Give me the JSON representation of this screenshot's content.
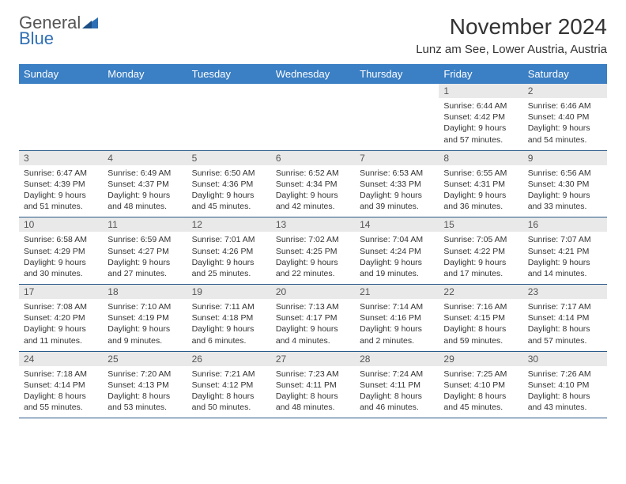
{
  "logo": {
    "word1": "General",
    "word2": "Blue"
  },
  "header": {
    "title": "November 2024",
    "location": "Lunz am See, Lower Austria, Austria"
  },
  "colors": {
    "header_bg": "#3b7fc4",
    "header_text": "#ffffff",
    "daynum_bg": "#e9e9e9",
    "row_border": "#2a5a8a",
    "logo_blue": "#2f6fb5"
  },
  "weekdays": [
    "Sunday",
    "Monday",
    "Tuesday",
    "Wednesday",
    "Thursday",
    "Friday",
    "Saturday"
  ],
  "weeks": [
    [
      {
        "n": "",
        "sr": "",
        "ss": "",
        "dl": "",
        "empty": true
      },
      {
        "n": "",
        "sr": "",
        "ss": "",
        "dl": "",
        "empty": true
      },
      {
        "n": "",
        "sr": "",
        "ss": "",
        "dl": "",
        "empty": true
      },
      {
        "n": "",
        "sr": "",
        "ss": "",
        "dl": "",
        "empty": true
      },
      {
        "n": "",
        "sr": "",
        "ss": "",
        "dl": "",
        "empty": true
      },
      {
        "n": "1",
        "sr": "Sunrise: 6:44 AM",
        "ss": "Sunset: 4:42 PM",
        "dl": "Daylight: 9 hours and 57 minutes."
      },
      {
        "n": "2",
        "sr": "Sunrise: 6:46 AM",
        "ss": "Sunset: 4:40 PM",
        "dl": "Daylight: 9 hours and 54 minutes."
      }
    ],
    [
      {
        "n": "3",
        "sr": "Sunrise: 6:47 AM",
        "ss": "Sunset: 4:39 PM",
        "dl": "Daylight: 9 hours and 51 minutes."
      },
      {
        "n": "4",
        "sr": "Sunrise: 6:49 AM",
        "ss": "Sunset: 4:37 PM",
        "dl": "Daylight: 9 hours and 48 minutes."
      },
      {
        "n": "5",
        "sr": "Sunrise: 6:50 AM",
        "ss": "Sunset: 4:36 PM",
        "dl": "Daylight: 9 hours and 45 minutes."
      },
      {
        "n": "6",
        "sr": "Sunrise: 6:52 AM",
        "ss": "Sunset: 4:34 PM",
        "dl": "Daylight: 9 hours and 42 minutes."
      },
      {
        "n": "7",
        "sr": "Sunrise: 6:53 AM",
        "ss": "Sunset: 4:33 PM",
        "dl": "Daylight: 9 hours and 39 minutes."
      },
      {
        "n": "8",
        "sr": "Sunrise: 6:55 AM",
        "ss": "Sunset: 4:31 PM",
        "dl": "Daylight: 9 hours and 36 minutes."
      },
      {
        "n": "9",
        "sr": "Sunrise: 6:56 AM",
        "ss": "Sunset: 4:30 PM",
        "dl": "Daylight: 9 hours and 33 minutes."
      }
    ],
    [
      {
        "n": "10",
        "sr": "Sunrise: 6:58 AM",
        "ss": "Sunset: 4:29 PM",
        "dl": "Daylight: 9 hours and 30 minutes."
      },
      {
        "n": "11",
        "sr": "Sunrise: 6:59 AM",
        "ss": "Sunset: 4:27 PM",
        "dl": "Daylight: 9 hours and 27 minutes."
      },
      {
        "n": "12",
        "sr": "Sunrise: 7:01 AM",
        "ss": "Sunset: 4:26 PM",
        "dl": "Daylight: 9 hours and 25 minutes."
      },
      {
        "n": "13",
        "sr": "Sunrise: 7:02 AM",
        "ss": "Sunset: 4:25 PM",
        "dl": "Daylight: 9 hours and 22 minutes."
      },
      {
        "n": "14",
        "sr": "Sunrise: 7:04 AM",
        "ss": "Sunset: 4:24 PM",
        "dl": "Daylight: 9 hours and 19 minutes."
      },
      {
        "n": "15",
        "sr": "Sunrise: 7:05 AM",
        "ss": "Sunset: 4:22 PM",
        "dl": "Daylight: 9 hours and 17 minutes."
      },
      {
        "n": "16",
        "sr": "Sunrise: 7:07 AM",
        "ss": "Sunset: 4:21 PM",
        "dl": "Daylight: 9 hours and 14 minutes."
      }
    ],
    [
      {
        "n": "17",
        "sr": "Sunrise: 7:08 AM",
        "ss": "Sunset: 4:20 PM",
        "dl": "Daylight: 9 hours and 11 minutes."
      },
      {
        "n": "18",
        "sr": "Sunrise: 7:10 AM",
        "ss": "Sunset: 4:19 PM",
        "dl": "Daylight: 9 hours and 9 minutes."
      },
      {
        "n": "19",
        "sr": "Sunrise: 7:11 AM",
        "ss": "Sunset: 4:18 PM",
        "dl": "Daylight: 9 hours and 6 minutes."
      },
      {
        "n": "20",
        "sr": "Sunrise: 7:13 AM",
        "ss": "Sunset: 4:17 PM",
        "dl": "Daylight: 9 hours and 4 minutes."
      },
      {
        "n": "21",
        "sr": "Sunrise: 7:14 AM",
        "ss": "Sunset: 4:16 PM",
        "dl": "Daylight: 9 hours and 2 minutes."
      },
      {
        "n": "22",
        "sr": "Sunrise: 7:16 AM",
        "ss": "Sunset: 4:15 PM",
        "dl": "Daylight: 8 hours and 59 minutes."
      },
      {
        "n": "23",
        "sr": "Sunrise: 7:17 AM",
        "ss": "Sunset: 4:14 PM",
        "dl": "Daylight: 8 hours and 57 minutes."
      }
    ],
    [
      {
        "n": "24",
        "sr": "Sunrise: 7:18 AM",
        "ss": "Sunset: 4:14 PM",
        "dl": "Daylight: 8 hours and 55 minutes."
      },
      {
        "n": "25",
        "sr": "Sunrise: 7:20 AM",
        "ss": "Sunset: 4:13 PM",
        "dl": "Daylight: 8 hours and 53 minutes."
      },
      {
        "n": "26",
        "sr": "Sunrise: 7:21 AM",
        "ss": "Sunset: 4:12 PM",
        "dl": "Daylight: 8 hours and 50 minutes."
      },
      {
        "n": "27",
        "sr": "Sunrise: 7:23 AM",
        "ss": "Sunset: 4:11 PM",
        "dl": "Daylight: 8 hours and 48 minutes."
      },
      {
        "n": "28",
        "sr": "Sunrise: 7:24 AM",
        "ss": "Sunset: 4:11 PM",
        "dl": "Daylight: 8 hours and 46 minutes."
      },
      {
        "n": "29",
        "sr": "Sunrise: 7:25 AM",
        "ss": "Sunset: 4:10 PM",
        "dl": "Daylight: 8 hours and 45 minutes."
      },
      {
        "n": "30",
        "sr": "Sunrise: 7:26 AM",
        "ss": "Sunset: 4:10 PM",
        "dl": "Daylight: 8 hours and 43 minutes."
      }
    ]
  ]
}
